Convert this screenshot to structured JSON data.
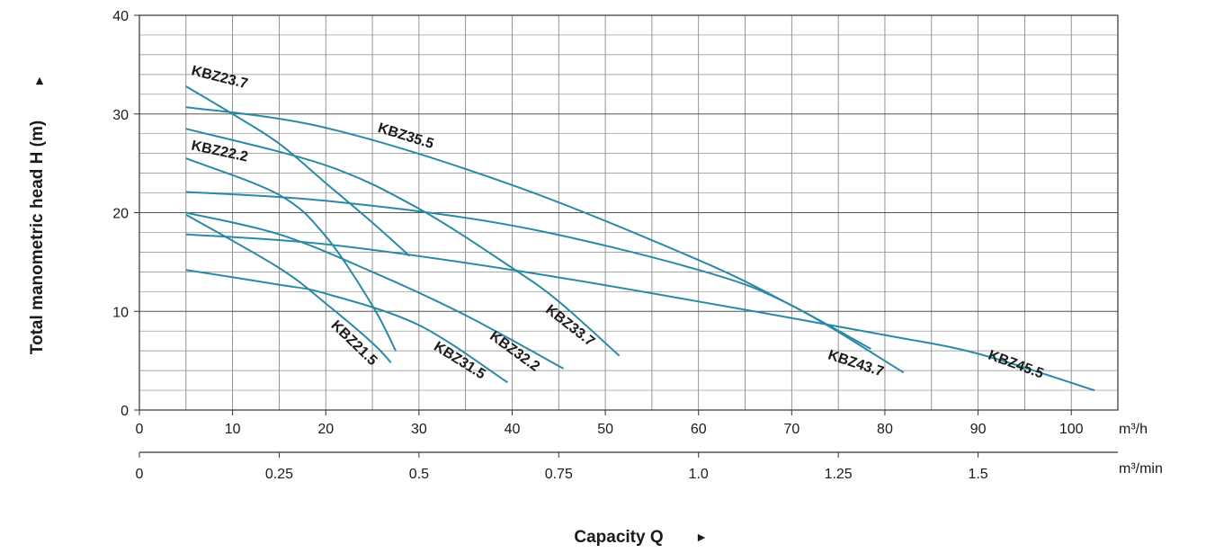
{
  "chart_data": {
    "type": "line",
    "ylabel": "Total manometric head H (m)",
    "ylabel_arrow": "►",
    "xlabel": "Capacity Q",
    "xlabel_arrow": "►",
    "x_unit": "m³/h",
    "x2_unit": "m³/min",
    "xlim": [
      0,
      105
    ],
    "ylim": [
      0,
      40
    ],
    "x_ticks": [
      0,
      10,
      20,
      30,
      40,
      50,
      60,
      70,
      80,
      90,
      100
    ],
    "x_tick_labels": [
      "0",
      "10",
      "20",
      "30",
      "40",
      "50",
      "60",
      "70",
      "80",
      "90",
      "100"
    ],
    "y_ticks": [
      0,
      10,
      20,
      30,
      40
    ],
    "y_tick_labels": [
      "0",
      "10",
      "20",
      "30",
      "40"
    ],
    "x2_ticks": [
      0,
      0.25,
      0.5,
      0.75,
      1.0,
      1.25,
      1.5
    ],
    "x2_tick_labels": [
      "0",
      "0.25",
      "0.5",
      "0.75",
      "1.0",
      "1.25",
      "1.5"
    ],
    "grid": true,
    "line_color": "#2a8aa5",
    "series": [
      {
        "name": "KBZ23.7",
        "x": [
          5,
          10,
          15,
          20,
          25,
          29
        ],
        "y": [
          32.8,
          30.0,
          27.0,
          23.0,
          19.0,
          15.6
        ]
      },
      {
        "name": "KBZ35.5",
        "x": [
          5,
          20,
          40,
          60,
          70,
          78.5
        ],
        "y": [
          30.7,
          28.6,
          22.8,
          15.2,
          10.6,
          6.2
        ]
      },
      {
        "name": "KBZ33.7",
        "x": [
          5,
          20,
          30,
          40,
          45,
          51.5
        ],
        "y": [
          28.5,
          24.8,
          20.4,
          14.4,
          11.0,
          5.5
        ]
      },
      {
        "name": "KBZ22.2",
        "x": [
          5,
          15,
          20,
          25,
          27.5
        ],
        "y": [
          25.5,
          21.8,
          17.6,
          10.6,
          6.0
        ]
      },
      {
        "name": "KBZ43.7",
        "x": [
          5,
          20,
          40,
          60,
          70,
          82
        ],
        "y": [
          22.1,
          21.2,
          18.7,
          14.2,
          10.6,
          3.8
        ]
      },
      {
        "name": "KBZ32.2",
        "x": [
          5,
          15,
          25,
          35,
          45.5
        ],
        "y": [
          20.0,
          17.8,
          14.0,
          9.6,
          4.2
        ]
      },
      {
        "name": "KBZ21.5",
        "x": [
          5,
          15,
          20,
          25,
          27
        ],
        "y": [
          19.8,
          14.4,
          10.8,
          6.8,
          4.8
        ]
      },
      {
        "name": "KBZ45.5",
        "x": [
          5,
          20,
          40,
          60,
          80,
          90,
          102.5
        ],
        "y": [
          17.8,
          16.8,
          14.2,
          11.0,
          7.6,
          5.7,
          2.0
        ]
      },
      {
        "name": "KBZ31.5",
        "x": [
          5,
          15,
          20,
          30,
          39.5
        ],
        "y": [
          14.2,
          12.7,
          11.8,
          8.6,
          2.8
        ]
      }
    ],
    "annotations": [
      {
        "text": "KBZ23.7",
        "x": 5.5,
        "y": 34.0,
        "angle": 14
      },
      {
        "text": "KBZ35.5",
        "x": 25.5,
        "y": 28.2,
        "angle": 17
      },
      {
        "text": "KBZ22.2",
        "x": 5.5,
        "y": 26.4,
        "angle": 12
      },
      {
        "text": "KBZ33.7",
        "x": 43.5,
        "y": 10.0,
        "angle": 38
      },
      {
        "text": "KBZ32.2",
        "x": 37.5,
        "y": 7.3,
        "angle": 36
      },
      {
        "text": "KBZ21.5",
        "x": 20.5,
        "y": 8.5,
        "angle": 44
      },
      {
        "text": "KBZ31.5",
        "x": 31.5,
        "y": 6.2,
        "angle": 32
      },
      {
        "text": "KBZ43.7",
        "x": 73.8,
        "y": 5.2,
        "angle": 18
      },
      {
        "text": "KBZ45.5",
        "x": 91.0,
        "y": 5.2,
        "angle": 20
      }
    ]
  }
}
